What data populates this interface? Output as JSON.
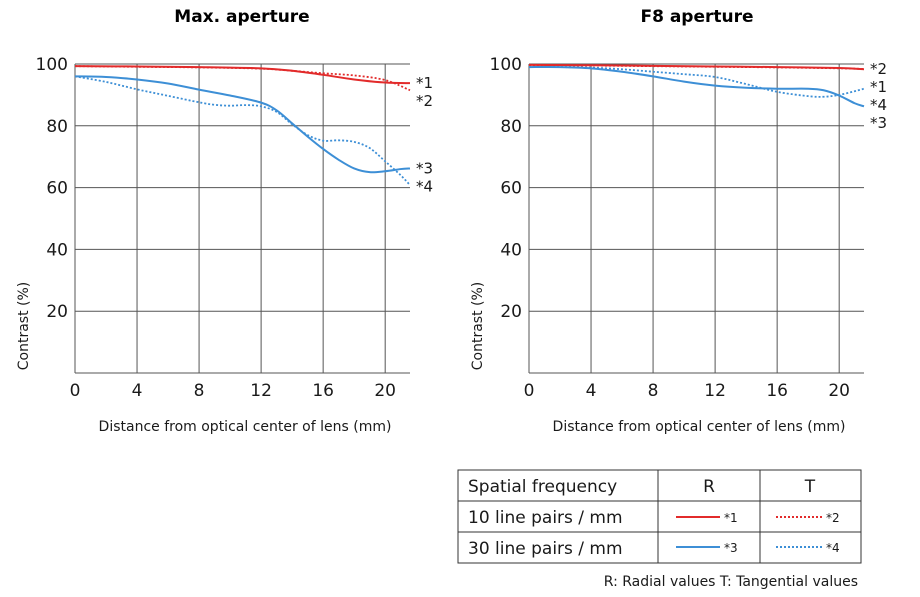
{
  "colors": {
    "red": "#e22b2b",
    "blue": "#3d8fd6",
    "grid": "#555555",
    "text": "#1a1a1a"
  },
  "chart_data": [
    {
      "type": "line",
      "title": "Max. aperture",
      "xlabel": "Distance from optical center of lens (mm)",
      "ylabel": "Contrast (%)",
      "xlim": [
        0,
        21.6
      ],
      "ylim": [
        0,
        100
      ],
      "xticks": [
        "0",
        "4",
        "8",
        "12",
        "16",
        "20"
      ],
      "yticks": [
        "20",
        "40",
        "60",
        "80",
        "100"
      ],
      "series": [
        {
          "name": "*1",
          "color": "red",
          "dash": "solid",
          "x": [
            0,
            4,
            8,
            12,
            14,
            16,
            18,
            20,
            21.6
          ],
          "y": [
            99.3,
            99.2,
            99.0,
            98.6,
            97.8,
            96.5,
            95.0,
            94.0,
            93.8
          ]
        },
        {
          "name": "*2",
          "color": "red",
          "dash": "dotted",
          "x": [
            0,
            4,
            8,
            12,
            14,
            16,
            18,
            20,
            21.6
          ],
          "y": [
            99.3,
            99.1,
            98.9,
            98.5,
            97.8,
            97.0,
            96.3,
            94.8,
            91.5
          ]
        },
        {
          "name": "*3",
          "color": "blue",
          "dash": "solid",
          "x": [
            0,
            2,
            4,
            6,
            8,
            10,
            12,
            13,
            14,
            15,
            16,
            17,
            18,
            19,
            20,
            21,
            21.6
          ],
          "y": [
            96.0,
            95.8,
            95.0,
            93.7,
            91.7,
            89.8,
            87.5,
            85.0,
            80.8,
            76.5,
            72.5,
            69.0,
            66.2,
            65.0,
            65.3,
            66.0,
            66.2
          ]
        },
        {
          "name": "*4",
          "color": "blue",
          "dash": "dotted",
          "x": [
            0,
            2,
            4,
            6,
            8,
            9,
            10,
            11,
            12,
            13,
            14,
            15,
            16,
            17,
            18,
            19,
            20,
            21,
            21.6
          ],
          "y": [
            96.0,
            94.2,
            91.8,
            89.7,
            87.6,
            86.8,
            86.5,
            86.7,
            86.3,
            84.5,
            80.5,
            77.0,
            75.2,
            75.3,
            74.8,
            72.8,
            68.5,
            64.0,
            60.8
          ]
        }
      ],
      "curve_labels": [
        "*1",
        "*2",
        "*3",
        "*4"
      ]
    },
    {
      "type": "line",
      "title": "F8 aperture",
      "xlabel": "Distance from optical center of lens (mm)",
      "ylabel": "Contrast (%)",
      "xlim": [
        0,
        21.6
      ],
      "ylim": [
        0,
        100
      ],
      "xticks": [
        "0",
        "4",
        "8",
        "12",
        "16",
        "20"
      ],
      "yticks": [
        "20",
        "40",
        "60",
        "80",
        "100"
      ],
      "series": [
        {
          "name": "*1",
          "color": "red",
          "dash": "solid",
          "x": [
            0,
            4,
            8,
            12,
            16,
            20,
            21.6
          ],
          "y": [
            99.7,
            99.6,
            99.4,
            99.2,
            99.0,
            98.7,
            98.3
          ]
        },
        {
          "name": "*2",
          "color": "red",
          "dash": "dotted",
          "x": [
            0,
            4,
            8,
            12,
            16,
            20,
            21.6
          ],
          "y": [
            99.6,
            99.5,
            99.3,
            99.1,
            98.9,
            98.6,
            98.4
          ]
        },
        {
          "name": "*3",
          "color": "blue",
          "dash": "solid",
          "x": [
            0,
            2,
            4,
            6,
            8,
            10,
            12,
            14,
            16,
            18,
            19,
            20,
            21,
            21.6
          ],
          "y": [
            99.0,
            99.0,
            98.6,
            97.5,
            96.0,
            94.3,
            93.0,
            92.3,
            92.0,
            92.0,
            91.5,
            89.8,
            87.3,
            86.3
          ]
        },
        {
          "name": "*4",
          "color": "blue",
          "dash": "dotted",
          "x": [
            0,
            2,
            4,
            6,
            8,
            10,
            12,
            14,
            16,
            18,
            19,
            20,
            21,
            21.6
          ],
          "y": [
            99.0,
            99.0,
            98.8,
            98.3,
            97.5,
            96.7,
            95.8,
            93.5,
            91.0,
            89.6,
            89.4,
            90.0,
            91.2,
            92.0
          ]
        }
      ],
      "curve_labels": [
        "*2",
        "*1",
        "*4",
        "*3"
      ]
    }
  ],
  "legend_table": {
    "header": [
      "Spatial frequency",
      "R",
      "T"
    ],
    "rows": [
      {
        "label": "10 line pairs / mm",
        "r_tag": "*1",
        "t_tag": "*2",
        "color": "red"
      },
      {
        "label": "30 line pairs / mm",
        "r_tag": "*3",
        "t_tag": "*4",
        "color": "blue"
      }
    ],
    "footnote": "R: Radial values  T: Tangential values"
  }
}
